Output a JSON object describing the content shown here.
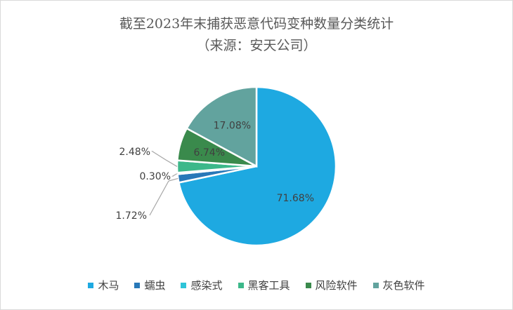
{
  "chart_data": {
    "type": "pie",
    "title": "截至2023年末捕获恶意代码变种数量分类统计",
    "subtitle": "（来源：安天公司）",
    "legend_position": "bottom",
    "slices": [
      {
        "name": "木马",
        "value": 71.68,
        "label": "71.68%",
        "color": "#1ea9e1"
      },
      {
        "name": "蠕虫",
        "value": 1.72,
        "label": "1.72%",
        "color": "#2878b8"
      },
      {
        "name": "感染式",
        "value": 0.3,
        "label": "0.30%",
        "color": "#2ec4d8"
      },
      {
        "name": "黑客工具",
        "value": 2.48,
        "label": "2.48%",
        "color": "#3cb88a"
      },
      {
        "name": "风险软件",
        "value": 6.74,
        "label": "6.74%",
        "color": "#3a8a4c"
      },
      {
        "name": "灰色软件",
        "value": 17.08,
        "label": "17.08%",
        "color": "#62a39e"
      }
    ]
  }
}
